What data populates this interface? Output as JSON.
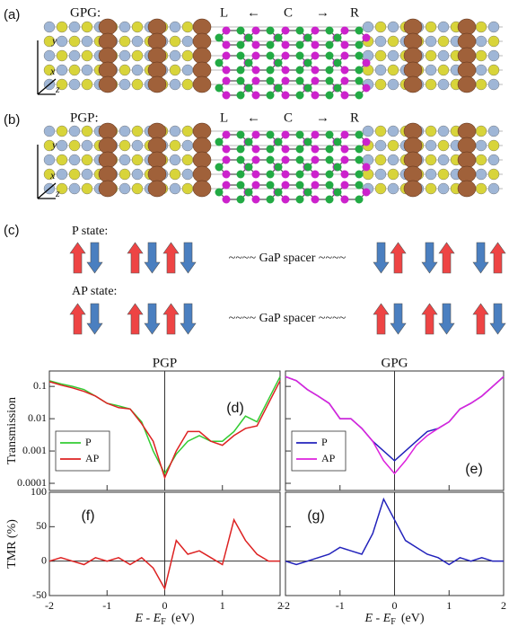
{
  "panel_labels": [
    "(a)",
    "(b)",
    "(c)"
  ],
  "structure_a": {
    "name": "GPG:",
    "left": "L",
    "arrow_left": "←",
    "center": "C",
    "arrow_right": "→",
    "right": "R",
    "axis_y": "y",
    "axis_x": "x",
    "axis_z": "z"
  },
  "structure_b": {
    "name": "PGP:",
    "left": "L",
    "arrow_left": "←",
    "center": "C",
    "arrow_right": "→",
    "right": "R",
    "axis_y": "y",
    "axis_x": "x",
    "axis_z": "z"
  },
  "spin_states": {
    "p_state": "P state:",
    "p_spacer": "~~~~ GaP spacer ~~~~",
    "ap_state": "AP state:",
    "ap_spacer": "~~~~ GaP spacer ~~~~"
  },
  "chart_data": [
    {
      "type": "line",
      "title": "PGP",
      "ylabel": "Transmission",
      "panel_label": "(d)",
      "legend": "lower left",
      "x": [
        -2,
        -1.8,
        -1.6,
        -1.4,
        -1.2,
        -1,
        -0.8,
        -0.6,
        -0.4,
        -0.2,
        0,
        0.2,
        0.4,
        0.6,
        0.8,
        1,
        1.2,
        1.4,
        1.6,
        1.8,
        2
      ],
      "series": [
        {
          "name": "P",
          "color": "#33cc33",
          "values": [
            0.15,
            0.12,
            0.1,
            0.08,
            0.05,
            0.03,
            0.025,
            0.02,
            0.008,
            0.001,
            0.0002,
            0.0008,
            0.002,
            0.003,
            0.002,
            0.002,
            0.004,
            0.012,
            0.008,
            0.04,
            0.2
          ]
        },
        {
          "name": "AP",
          "color": "#dd2222",
          "values": [
            0.14,
            0.11,
            0.09,
            0.07,
            0.05,
            0.03,
            0.022,
            0.02,
            0.007,
            0.002,
            0.00015,
            0.001,
            0.004,
            0.004,
            0.002,
            0.0015,
            0.003,
            0.005,
            0.006,
            0.03,
            0.15
          ]
        }
      ],
      "xlim": [
        -2,
        2
      ],
      "xticks": [
        -2,
        -1,
        0,
        1,
        2
      ],
      "ylim": [
        6e-05,
        0.3
      ],
      "yticks": [
        0.0001,
        0.001,
        0.01,
        0.1
      ],
      "ylog": true
    },
    {
      "type": "line",
      "title": "GPG",
      "panel_label": "(e)",
      "legend": "lower left",
      "x": [
        -2,
        -1.8,
        -1.6,
        -1.4,
        -1.2,
        -1,
        -0.8,
        -0.6,
        -0.4,
        -0.2,
        0,
        0.2,
        0.4,
        0.6,
        0.8,
        1,
        1.2,
        1.4,
        1.6,
        1.8,
        2
      ],
      "series": [
        {
          "name": "P",
          "color": "#2222bb",
          "values": [
            0.2,
            0.15,
            0.08,
            0.05,
            0.03,
            0.01,
            0.01,
            0.005,
            0.002,
            0.001,
            0.0005,
            0.001,
            0.002,
            0.004,
            0.005,
            0.008,
            0.02,
            0.03,
            0.05,
            0.1,
            0.2
          ]
        },
        {
          "name": "AP",
          "color": "#dd22dd",
          "values": [
            0.2,
            0.15,
            0.08,
            0.05,
            0.03,
            0.01,
            0.01,
            0.005,
            0.002,
            0.0005,
            0.0002,
            0.0005,
            0.0015,
            0.003,
            0.005,
            0.008,
            0.02,
            0.03,
            0.05,
            0.1,
            0.2
          ]
        }
      ],
      "xlim": [
        -2,
        2
      ],
      "xticks": [
        -2,
        -1,
        0,
        1,
        2
      ],
      "ylim": [
        6e-05,
        0.3
      ],
      "yticks": [
        0.0001,
        0.001,
        0.01,
        0.1
      ],
      "ylog": true
    },
    {
      "type": "line",
      "ylabel": "TMR (%)",
      "panel_label": "(f)",
      "xlabel": [
        "E - E",
        "F",
        "(eV)"
      ],
      "x": [
        -2,
        -1.8,
        -1.6,
        -1.4,
        -1.2,
        -1,
        -0.8,
        -0.6,
        -0.4,
        -0.2,
        0,
        0.2,
        0.4,
        0.6,
        0.8,
        1,
        1.2,
        1.4,
        1.6,
        1.8,
        2
      ],
      "series": [
        {
          "color": "#dd2222",
          "values": [
            0,
            5,
            0,
            -5,
            5,
            0,
            5,
            -5,
            5,
            -10,
            -40,
            30,
            10,
            15,
            5,
            -5,
            60,
            30,
            10,
            0,
            0
          ]
        }
      ],
      "xlim": [
        -2,
        2
      ],
      "xticks": [
        -2,
        -1,
        0,
        1,
        2
      ],
      "ylim": [
        -50,
        100
      ],
      "yticks": [
        -50,
        0,
        50,
        100
      ]
    },
    {
      "type": "line",
      "panel_label": "(g)",
      "xlabel": [
        "E - E",
        "F",
        "(eV)"
      ],
      "x": [
        -2,
        -1.8,
        -1.6,
        -1.4,
        -1.2,
        -1,
        -0.8,
        -0.6,
        -0.4,
        -0.2,
        0,
        0.2,
        0.4,
        0.6,
        0.8,
        1,
        1.2,
        1.4,
        1.6,
        1.8,
        2
      ],
      "series": [
        {
          "color": "#2222bb",
          "values": [
            0,
            -5,
            0,
            5,
            10,
            20,
            15,
            10,
            40,
            90,
            60,
            30,
            20,
            10,
            5,
            -5,
            5,
            0,
            5,
            0,
            0
          ]
        }
      ],
      "xlim": [
        -2,
        2
      ],
      "xticks": [
        -2,
        -1,
        0,
        1,
        2
      ],
      "ylim": [
        -50,
        100
      ],
      "yticks": [
        -50,
        0,
        50,
        100
      ]
    }
  ]
}
